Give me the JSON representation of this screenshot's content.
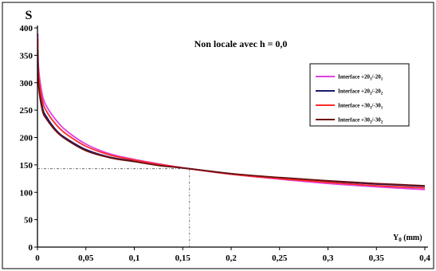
{
  "chart_data": {
    "type": "line",
    "title": "Non locale avec h = 0,0",
    "ylabel": "S",
    "xlabel": {
      "main": "Y",
      "sub": "0",
      "suffix": " (mm)"
    },
    "xlim": [
      0,
      0.4
    ],
    "ylim": [
      0,
      400
    ],
    "x_ticks": [
      0,
      0.05,
      0.1,
      0.15,
      0.2,
      0.25,
      0.3,
      0.35,
      0.4
    ],
    "x_tick_labels": [
      "0",
      "0,05",
      "0,1",
      "0,15",
      "0,2",
      "0,25",
      "0,3",
      "0,35",
      "0,4"
    ],
    "y_ticks": [
      0,
      50,
      100,
      150,
      200,
      250,
      300,
      350,
      400
    ],
    "y_tick_labels": [
      "0",
      "50",
      "100",
      "150",
      "200",
      "250",
      "300",
      "350",
      "400"
    ],
    "grid": false,
    "legend_position": "right",
    "reference_point": {
      "x": 0.157,
      "y": 143
    },
    "series": [
      {
        "name": "Interface +20/-20",
        "label_parts": [
          "Interface +20",
          "1",
          "/-20",
          "1"
        ],
        "color": "#e040e0",
        "x": [
          0.001,
          0.005,
          0.01,
          0.02,
          0.03,
          0.05,
          0.075,
          0.1,
          0.125,
          0.157,
          0.2,
          0.25,
          0.3,
          0.35,
          0.4
        ],
        "y": [
          330,
          278,
          255,
          230,
          212,
          188,
          170,
          160,
          152,
          143,
          133,
          124,
          116,
          110,
          105
        ]
      },
      {
        "name": "Interface +20/-20",
        "label_parts": [
          "Interface +20",
          "2",
          "/-20",
          "2"
        ],
        "color": "#1a1a6e",
        "x": [
          0.001,
          0.005,
          0.01,
          0.02,
          0.03,
          0.05,
          0.075,
          0.1,
          0.125,
          0.157,
          0.2,
          0.25,
          0.3,
          0.35,
          0.4
        ],
        "y": [
          310,
          256,
          236,
          212,
          198,
          178,
          164,
          157,
          150,
          143,
          134,
          126,
          120,
          115,
          111
        ]
      },
      {
        "name": "Interface +30/-30",
        "label_parts": [
          "Interface +30",
          "1",
          "/-30",
          "1"
        ],
        "color": "#ff2a2a",
        "x": [
          0.001,
          0.005,
          0.01,
          0.02,
          0.03,
          0.05,
          0.075,
          0.1,
          0.125,
          0.157,
          0.2,
          0.25,
          0.3,
          0.35,
          0.4
        ],
        "y": [
          320,
          268,
          246,
          222,
          206,
          184,
          168,
          159,
          151,
          143,
          133,
          125,
          118,
          112,
          108
        ]
      },
      {
        "name": "Interface +30/-30",
        "label_parts": [
          "Interface +30",
          "2",
          "/-30",
          "2"
        ],
        "color": "#6a1010",
        "x": [
          0.001,
          0.005,
          0.01,
          0.02,
          0.03,
          0.05,
          0.075,
          0.1,
          0.125,
          0.157,
          0.2,
          0.25,
          0.3,
          0.35,
          0.4
        ],
        "y": [
          300,
          250,
          232,
          210,
          196,
          176,
          163,
          156,
          149,
          143,
          134,
          127,
          121,
          116,
          112
        ]
      }
    ]
  }
}
